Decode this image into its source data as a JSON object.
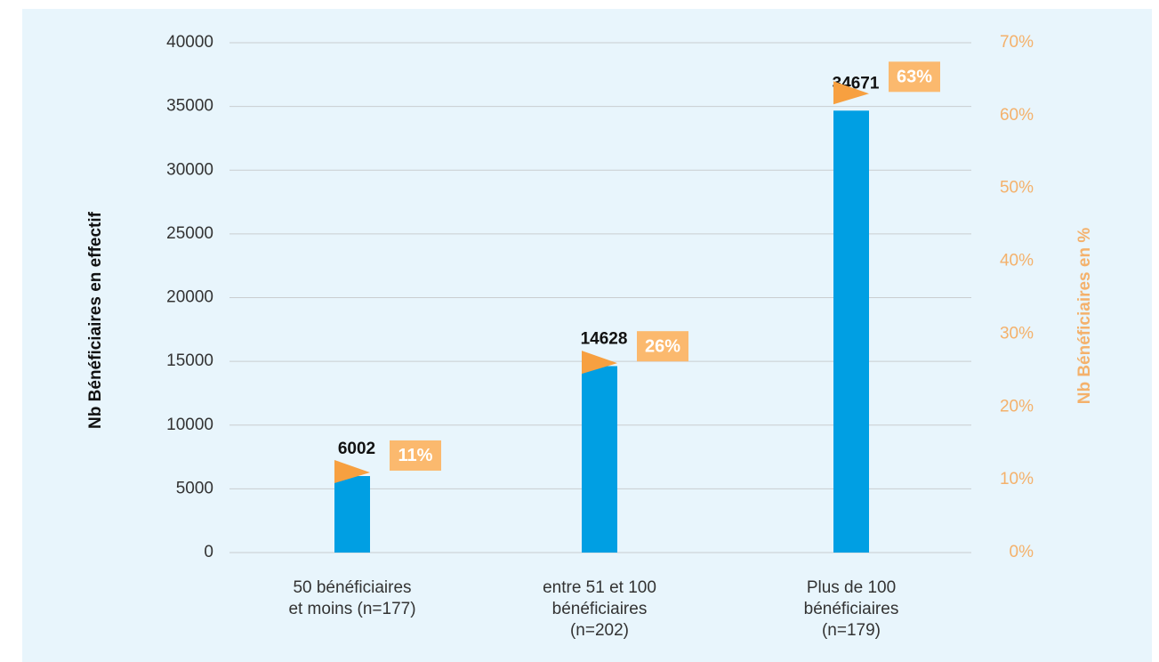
{
  "chart_data": {
    "type": "bar",
    "categories": [
      [
        "50 bénéficiaires",
        "et moins (n=177)"
      ],
      [
        "entre 51 et 100",
        "bénéficiaires",
        "(n=202)"
      ],
      [
        "Plus de 100",
        "bénéficiaires",
        "(n=179)"
      ]
    ],
    "ylabel": "Nb Bénéficiaires en effectif",
    "y2label": "Nb Bénéficiaires en %",
    "series": [
      {
        "color": "#009fe3",
        "values": [
          6002,
          14628,
          34671
        ]
      },
      {
        "color": "#f7a040",
        "axis": "y2",
        "values": [
          11,
          26,
          63
        ],
        "value_labels": [
          "11%",
          "26%",
          "63%"
        ]
      }
    ],
    "ylim": [
      0,
      40000
    ],
    "yticks": [
      0,
      5000,
      10000,
      15000,
      20000,
      25000,
      30000,
      35000,
      40000
    ],
    "y2lim": [
      0,
      70
    ],
    "y2ticks": [
      {
        "value": 0,
        "label": "0%"
      },
      {
        "value": 10,
        "label": "10%"
      },
      {
        "value": 20,
        "label": "20%"
      },
      {
        "value": 30,
        "label": "30%"
      },
      {
        "value": 40,
        "label": "40%"
      },
      {
        "value": 50,
        "label": "50%"
      },
      {
        "value": 60,
        "label": "60%"
      },
      {
        "value": 70,
        "label": "70%"
      }
    ],
    "grid": true
  }
}
